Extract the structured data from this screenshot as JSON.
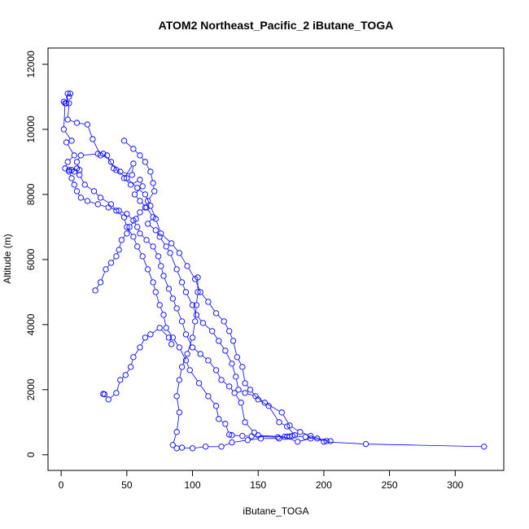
{
  "chart_data": {
    "type": "line",
    "title": "ATOM2 Northeast_Pacific_2 iButane_TOGA",
    "xlabel": "iButane_TOGA",
    "ylabel": "Altitude (m)",
    "xlim": [
      -10,
      337
    ],
    "ylim": [
      -480,
      12500
    ],
    "xticks": [
      0,
      50,
      100,
      150,
      200,
      250,
      300
    ],
    "yticks": [
      0,
      2000,
      4000,
      6000,
      8000,
      10000,
      12000
    ],
    "grid": false,
    "legend": "none",
    "color": "#0000ff",
    "series": [
      {
        "values": [
          [
            322,
            250
          ],
          [
            232,
            330
          ],
          [
            200,
            400
          ],
          [
            195,
            500
          ],
          [
            186,
            550
          ],
          [
            176,
            580
          ],
          [
            172,
            560
          ],
          [
            165,
            540
          ],
          [
            145,
            570
          ],
          [
            138,
            580
          ],
          [
            130,
            600
          ],
          [
            128,
            620
          ],
          [
            125,
            950
          ],
          [
            120,
            1100
          ],
          [
            118,
            1500
          ],
          [
            112,
            1800
          ],
          [
            105,
            2200
          ],
          [
            98,
            2600
          ],
          [
            95,
            2900
          ],
          [
            90,
            3300
          ],
          [
            85,
            3600
          ],
          [
            80,
            3900
          ],
          [
            78,
            4300
          ],
          [
            75,
            4600
          ],
          [
            72,
            5000
          ],
          [
            70,
            5300
          ],
          [
            66,
            5700
          ],
          [
            62,
            6100
          ],
          [
            58,
            6400
          ],
          [
            55,
            6700
          ],
          [
            50,
            7000
          ],
          [
            48,
            7300
          ],
          [
            42,
            7500
          ],
          [
            38,
            7700
          ],
          [
            30,
            7900
          ],
          [
            25,
            8100
          ],
          [
            18,
            8300
          ],
          [
            14,
            8600
          ],
          [
            10,
            8700
          ],
          [
            6,
            8750
          ],
          [
            3,
            8800
          ],
          [
            5,
            9000
          ],
          [
            10,
            9200
          ],
          [
            4,
            9600
          ],
          [
            8,
            9650
          ],
          [
            2,
            10000
          ],
          [
            3,
            10800
          ],
          [
            6,
            11000
          ],
          [
            7,
            11100
          ],
          [
            5,
            11100
          ],
          [
            4,
            10800
          ],
          [
            2,
            10850
          ],
          [
            6,
            10800
          ],
          [
            5,
            10300
          ],
          [
            12,
            10200
          ],
          [
            20,
            10150
          ],
          [
            24,
            9700
          ],
          [
            30,
            9200
          ],
          [
            35,
            9200
          ],
          [
            40,
            8800
          ],
          [
            45,
            8700
          ],
          [
            54,
            8600
          ],
          [
            55,
            8950
          ],
          [
            48,
            8500
          ],
          [
            53,
            8300
          ],
          [
            60,
            8450
          ],
          [
            62,
            8250
          ],
          [
            56,
            8000
          ],
          [
            60,
            7800
          ],
          [
            65,
            7600
          ],
          [
            70,
            7300
          ],
          [
            66,
            7100
          ],
          [
            72,
            6900
          ],
          [
            75,
            6700
          ],
          [
            80,
            6400
          ],
          [
            83,
            6200
          ],
          [
            88,
            5700
          ],
          [
            92,
            5300
          ],
          [
            95,
            5000
          ],
          [
            100,
            4600
          ],
          [
            103,
            4300
          ],
          [
            108,
            4050
          ],
          [
            115,
            3800
          ],
          [
            120,
            3500
          ],
          [
            125,
            3200
          ],
          [
            130,
            2800
          ],
          [
            133,
            2400
          ],
          [
            135,
            2000
          ],
          [
            140,
            1900
          ],
          [
            148,
            1800
          ],
          [
            155,
            1600
          ],
          [
            168,
            1300
          ],
          [
            174,
            900
          ],
          [
            182,
            700
          ],
          [
            190,
            580
          ],
          [
            202,
            420
          ],
          [
            205,
            420
          ],
          [
            190,
            500
          ],
          [
            180,
            400
          ],
          [
            170,
            550
          ],
          [
            150,
            600
          ],
          [
            147,
            680
          ],
          [
            140,
            1000
          ],
          [
            137,
            1600
          ],
          [
            132,
            1900
          ],
          [
            128,
            2100
          ],
          [
            122,
            2300
          ],
          [
            118,
            2600
          ],
          [
            112,
            2900
          ],
          [
            106,
            3100
          ],
          [
            100,
            3300
          ],
          [
            95,
            3700
          ],
          [
            92,
            4100
          ],
          [
            88,
            4500
          ],
          [
            85,
            4800
          ],
          [
            82,
            5100
          ],
          [
            78,
            5500
          ],
          [
            76,
            5800
          ],
          [
            74,
            6100
          ],
          [
            70,
            6400
          ],
          [
            65,
            6600
          ],
          [
            60,
            6800
          ],
          [
            58,
            7000
          ],
          [
            55,
            7200
          ],
          [
            50,
            7400
          ],
          [
            44,
            7500
          ],
          [
            36,
            7600
          ],
          [
            28,
            7700
          ],
          [
            20,
            7800
          ],
          [
            15,
            7900
          ],
          [
            12,
            8100
          ],
          [
            10,
            8300
          ],
          [
            8,
            8500
          ],
          [
            6,
            8700
          ],
          [
            8,
            8750
          ],
          [
            12,
            8800
          ],
          [
            14,
            8750
          ],
          [
            12,
            9000
          ],
          [
            15,
            9200
          ],
          [
            28,
            9250
          ],
          [
            32,
            9250
          ],
          [
            38,
            9000
          ],
          [
            42,
            8750
          ],
          [
            50,
            8500
          ],
          [
            58,
            8200
          ],
          [
            64,
            8000
          ],
          [
            68,
            7650
          ],
          [
            72,
            7250
          ],
          [
            76,
            6800
          ],
          [
            84,
            6500
          ],
          [
            90,
            6200
          ],
          [
            96,
            5800
          ],
          [
            102,
            5400
          ],
          [
            106,
            5000
          ],
          [
            112,
            4700
          ],
          [
            118,
            4350
          ],
          [
            124,
            4100
          ],
          [
            128,
            3800
          ],
          [
            131,
            3500
          ],
          [
            134,
            3000
          ],
          [
            138,
            2700
          ],
          [
            140,
            2200
          ],
          [
            144,
            2000
          ],
          [
            150,
            1700
          ],
          [
            158,
            1500
          ],
          [
            166,
            1000
          ],
          [
            172,
            870
          ],
          [
            178,
            600
          ],
          [
            174,
            560
          ],
          [
            166,
            500
          ],
          [
            152,
            500
          ],
          [
            142,
            450
          ],
          [
            130,
            380
          ],
          [
            122,
            250
          ],
          [
            110,
            250
          ],
          [
            100,
            200
          ],
          [
            92,
            220
          ],
          [
            88,
            200
          ],
          [
            85,
            300
          ],
          [
            88,
            700
          ],
          [
            90,
            1300
          ],
          [
            88,
            1800
          ],
          [
            90,
            2300
          ],
          [
            92,
            2700
          ],
          [
            96,
            3100
          ],
          [
            100,
            3600
          ],
          [
            102,
            4100
          ],
          [
            103,
            4600
          ],
          [
            104,
            5000
          ],
          [
            104,
            5450
          ]
        ]
      },
      {
        "values": [
          [
            32,
            1870
          ],
          [
            33,
            1860
          ],
          [
            36,
            1700
          ],
          [
            42,
            1900
          ],
          [
            45,
            2300
          ],
          [
            49,
            2450
          ],
          [
            53,
            2700
          ],
          [
            55,
            3000
          ],
          [
            60,
            3300
          ],
          [
            64,
            3600
          ],
          [
            68,
            3700
          ],
          [
            75,
            3900
          ],
          [
            82,
            3600
          ],
          [
            84,
            3400
          ]
        ]
      },
      {
        "values": [
          [
            26,
            5050
          ],
          [
            30,
            5300
          ],
          [
            34,
            5700
          ],
          [
            38,
            5900
          ],
          [
            42,
            6100
          ],
          [
            44,
            6300
          ],
          [
            46,
            6600
          ],
          [
            50,
            6800
          ],
          [
            52,
            7000
          ],
          [
            57,
            7250
          ],
          [
            60,
            7450
          ],
          [
            64,
            7600
          ],
          [
            66,
            7800
          ],
          [
            71,
            8100
          ],
          [
            70,
            8350
          ],
          [
            68,
            8700
          ],
          [
            64,
            9000
          ],
          [
            60,
            9200
          ],
          [
            55,
            9400
          ],
          [
            48,
            9650
          ]
        ]
      }
    ]
  }
}
